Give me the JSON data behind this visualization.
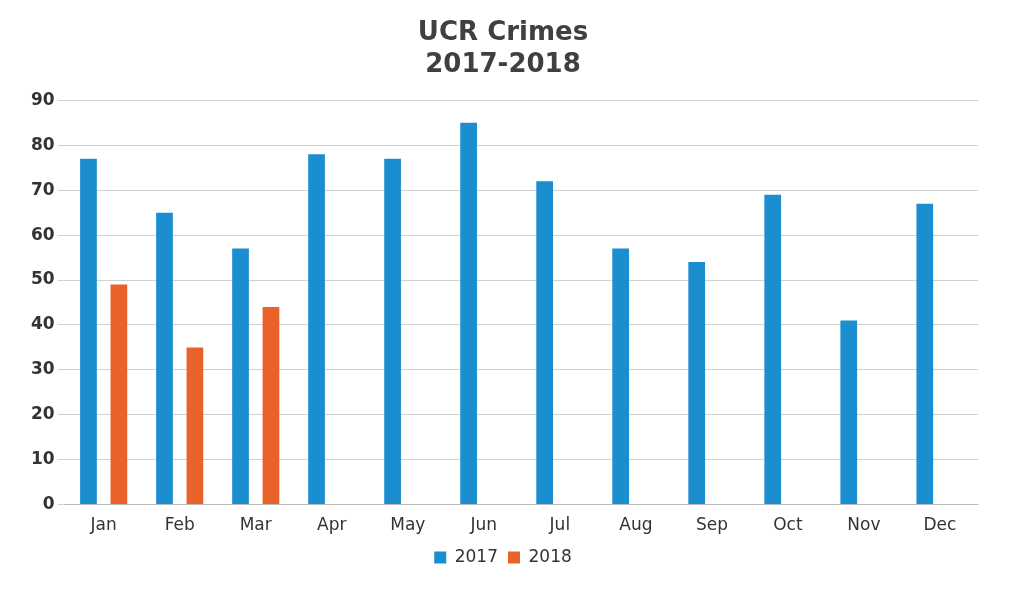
{
  "chart_data": {
    "type": "bar",
    "title": [
      "UCR Crimes",
      "2017-2018"
    ],
    "categories": [
      "Jan",
      "Feb",
      "Mar",
      "Apr",
      "May",
      "Jun",
      "Jul",
      "Aug",
      "Sep",
      "Oct",
      "Nov",
      "Dec"
    ],
    "series": [
      {
        "name": "2017",
        "color": "#1b8ed0",
        "values": [
          77,
          65,
          57,
          78,
          77,
          85,
          72,
          57,
          54,
          69,
          41,
          67
        ]
      },
      {
        "name": "2018",
        "color": "#e8622a",
        "values": [
          49,
          35,
          44,
          null,
          null,
          null,
          null,
          null,
          null,
          null,
          null,
          null
        ]
      }
    ],
    "ylim": [
      0,
      90
    ],
    "yticks": [
      0,
      10,
      20,
      30,
      40,
      50,
      60,
      70,
      80,
      90
    ],
    "grid": "y",
    "legend": "bottom"
  }
}
